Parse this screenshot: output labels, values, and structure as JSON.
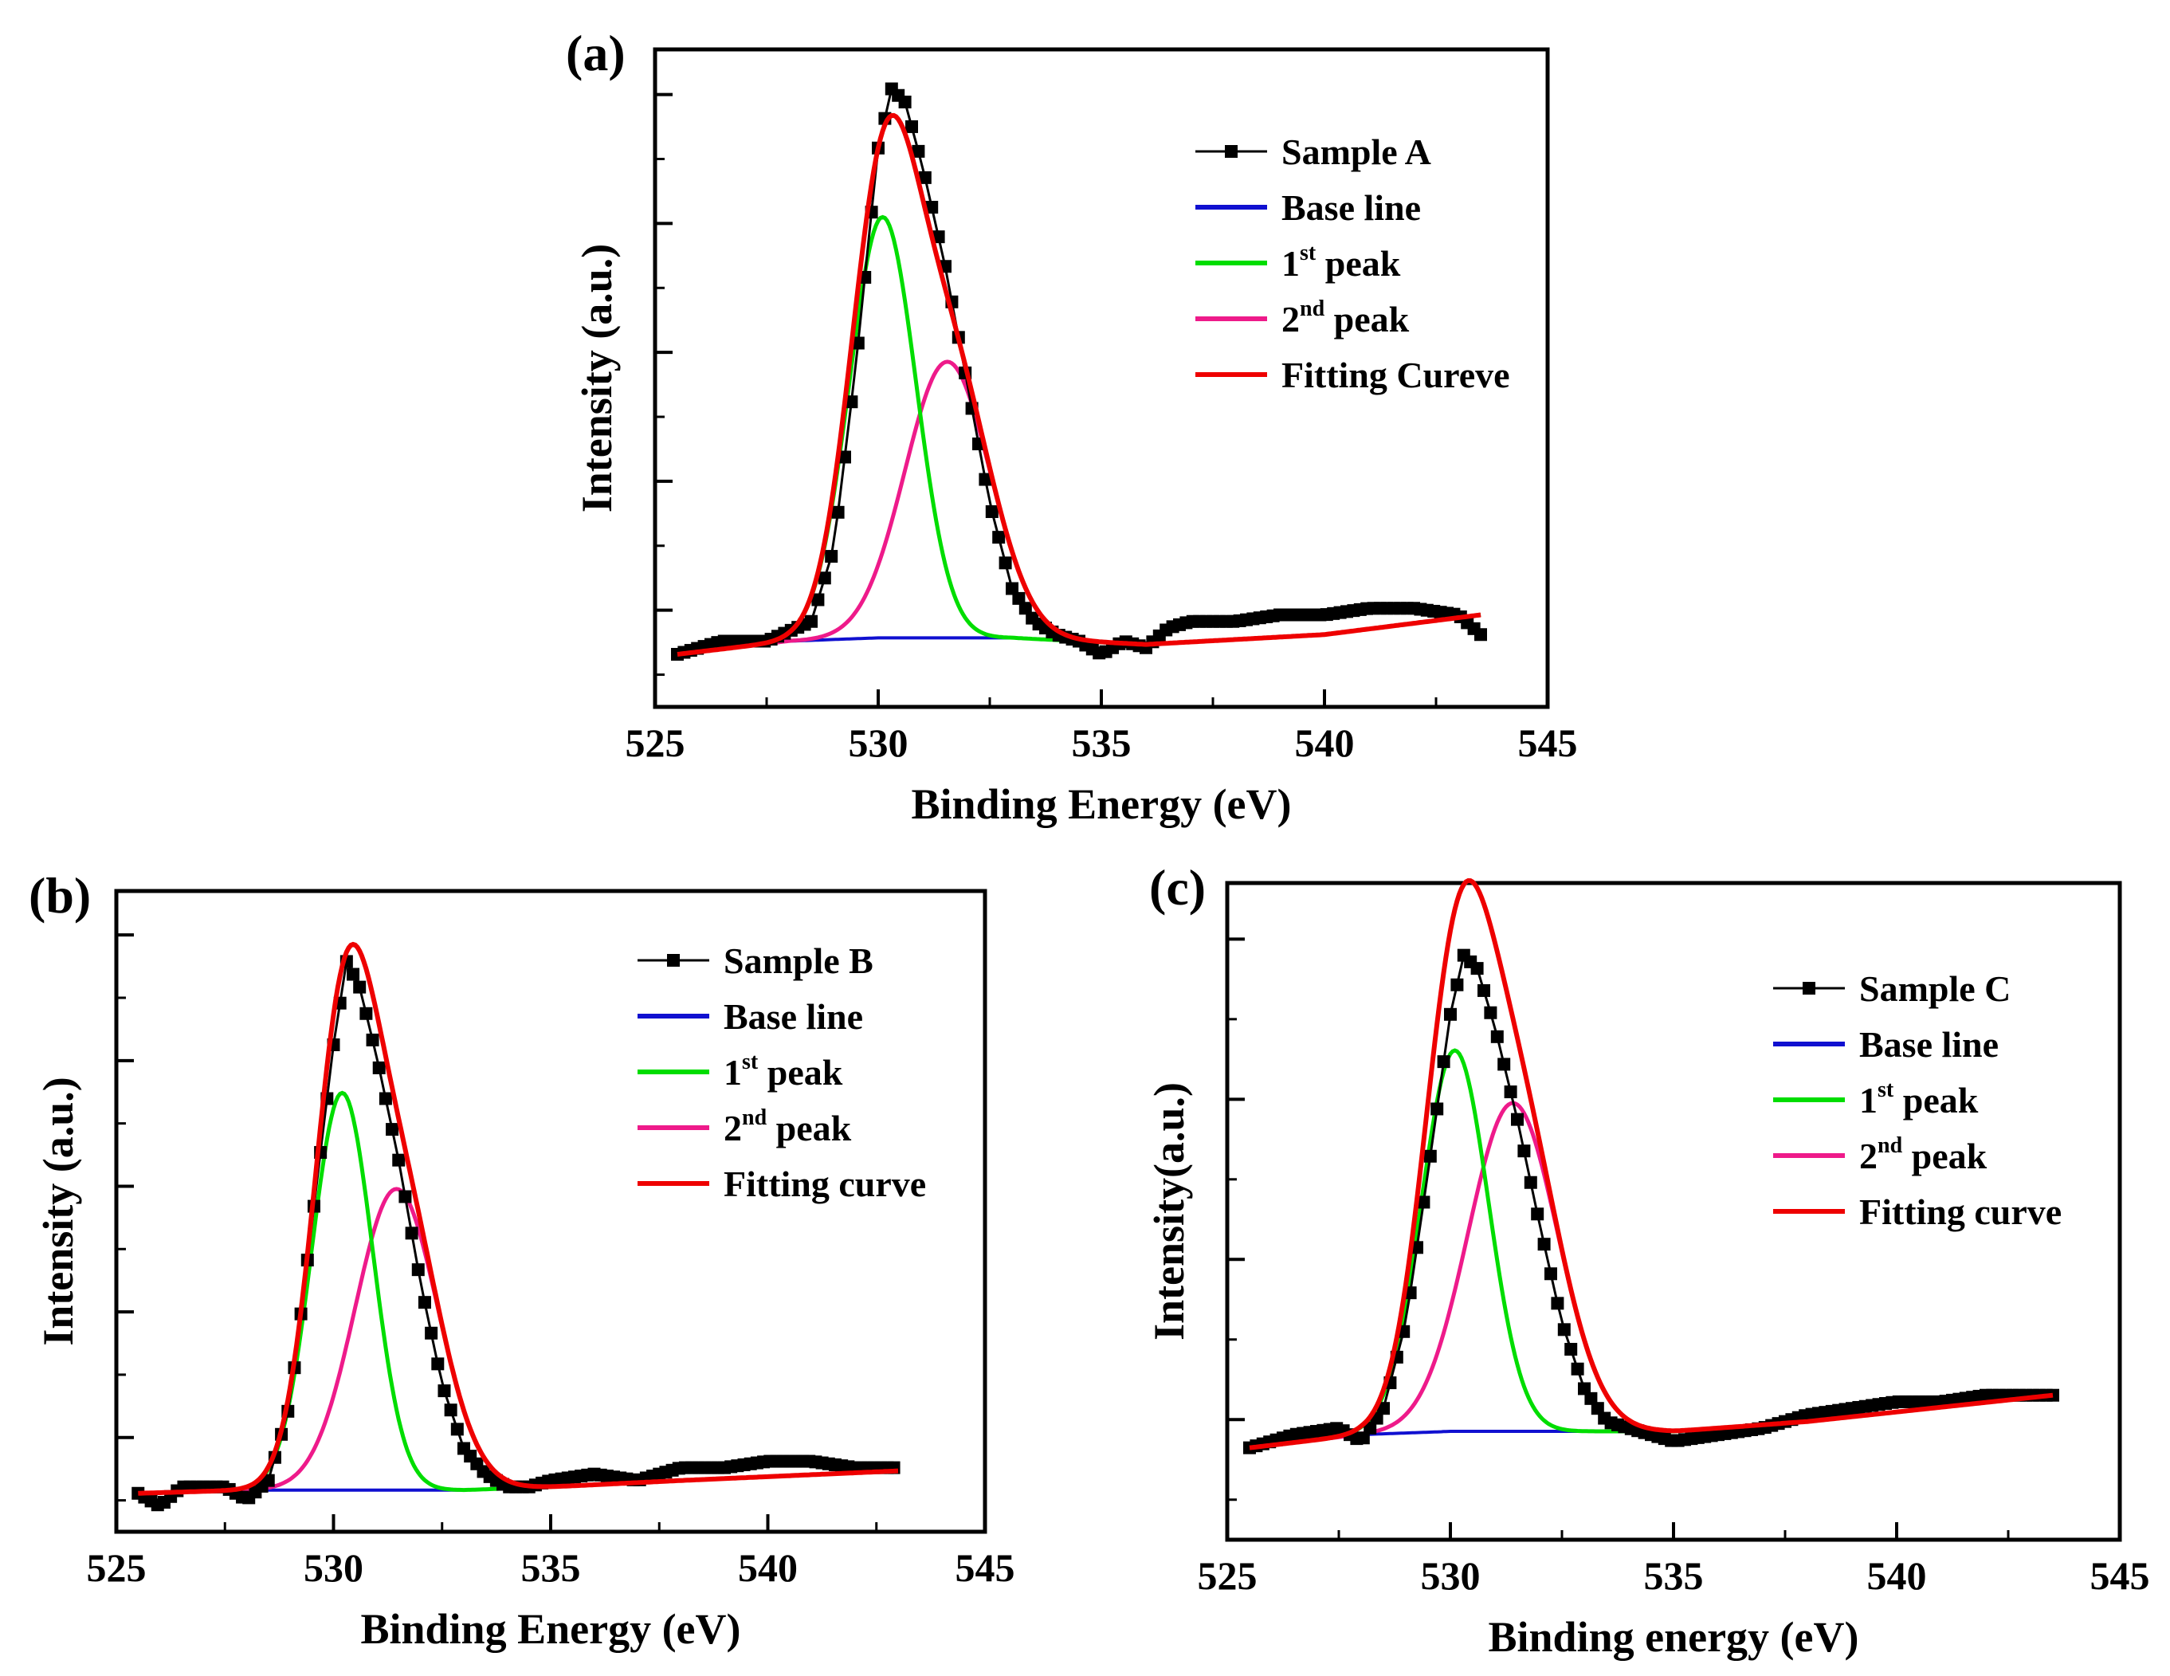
{
  "figure": {
    "panels": [
      "(a)",
      "(b)",
      "(c)"
    ]
  },
  "colors": {
    "sample": "#000000",
    "baseline": "#1010d0",
    "peak1": "#00dd00",
    "peak2": "#ee1a8a",
    "fit": "#ee0000"
  },
  "chart_data": [
    {
      "type": "line",
      "panel_label": "(a)",
      "xlabel": "Binding Energy (eV)",
      "ylabel": "Intensity (a.u.)",
      "xlim": [
        525,
        545
      ],
      "ylim": [
        0,
        100
      ],
      "xticks": [
        "525",
        "530",
        "535",
        "540",
        "545"
      ],
      "yticks_unlabeled": 5,
      "legend_position": "top-right",
      "legend": [
        {
          "key": "sample",
          "label": "Sample A",
          "sup": ""
        },
        {
          "key": "baseline",
          "label": "Base line",
          "sup": ""
        },
        {
          "key": "peak1",
          "label": "1",
          "sup": "st",
          "suffix": " peak"
        },
        {
          "key": "peak2",
          "label": "2",
          "sup": "nd",
          "suffix": " peak"
        },
        {
          "key": "fit",
          "label": "Fitting Cureve",
          "sup": ""
        }
      ],
      "x_start": 525.5,
      "x_end": 543.5,
      "peak1": {
        "center": 530.1,
        "height": 64,
        "sigma": 0.75
      },
      "peak2": {
        "center": 531.55,
        "height": 42,
        "sigma": 0.95
      },
      "baseline": {
        "x": [
          525.5,
          528,
          530,
          533,
          536,
          540,
          543.5
        ],
        "y": [
          8,
          10,
          10.5,
          10.5,
          9.5,
          11,
          14
        ]
      },
      "samples": {
        "x": [
          525.5,
          526.5,
          527.5,
          528.5,
          529.0,
          529.5,
          529.8,
          530.0,
          530.3,
          530.6,
          531.0,
          531.5,
          532.0,
          532.5,
          533.0,
          533.5,
          534.0,
          534.5,
          535.0,
          535.5,
          536.0,
          536.5,
          537.0,
          538.0,
          539.0,
          540.0,
          541.0,
          542.0,
          543.0,
          543.5
        ],
        "y": [
          8,
          10,
          10,
          13,
          24,
          52,
          72,
          85,
          94,
          92,
          82,
          67,
          49,
          31,
          18,
          13,
          11,
          10,
          8,
          10,
          9,
          12,
          13,
          13,
          14,
          14,
          15,
          15,
          14,
          11
        ]
      }
    },
    {
      "type": "line",
      "panel_label": "(b)",
      "xlabel": "Binding Energy (eV)",
      "ylabel": "Intensity (a.u.)",
      "xlim": [
        525,
        545
      ],
      "ylim": [
        0,
        100
      ],
      "xticks": [
        "525",
        "530",
        "535",
        "540",
        "545"
      ],
      "yticks_unlabeled": 5,
      "legend_position": "top-right",
      "legend": [
        {
          "key": "sample",
          "label": "Sample B",
          "sup": ""
        },
        {
          "key": "baseline",
          "label": "Base line",
          "sup": ""
        },
        {
          "key": "peak1",
          "label": "1",
          "sup": "st",
          "suffix": " peak"
        },
        {
          "key": "peak2",
          "label": "2",
          "sup": "nd",
          "suffix": " peak"
        },
        {
          "key": "fit",
          "label": "Fitting curve",
          "sup": ""
        }
      ],
      "x_start": 525.5,
      "x_end": 543,
      "peak1": {
        "center": 530.2,
        "height": 62,
        "sigma": 0.7
      },
      "peak2": {
        "center": 531.45,
        "height": 47,
        "sigma": 0.95
      },
      "baseline": {
        "x": [
          525.5,
          528,
          530,
          533,
          535,
          538,
          543
        ],
        "y": [
          6,
          6.5,
          6.5,
          6.5,
          7,
          8,
          9.5
        ]
      },
      "samples": {
        "x": [
          525.5,
          526.0,
          526.5,
          527.5,
          528.0,
          528.5,
          529.0,
          529.5,
          530.0,
          530.3,
          530.6,
          531.0,
          531.5,
          532.0,
          532.5,
          533.0,
          533.5,
          534.0,
          534.5,
          535.0,
          536.0,
          537.0,
          538.0,
          539.0,
          540.0,
          541.0,
          542.0,
          543.0
        ],
        "y": [
          6,
          4,
          7,
          7,
          5,
          8,
          20,
          48,
          76,
          89,
          85,
          74,
          58,
          39,
          23,
          13,
          9,
          7,
          7,
          8,
          9,
          8,
          10,
          10,
          11,
          11,
          10,
          10
        ]
      }
    },
    {
      "type": "line",
      "panel_label": "(c)",
      "xlabel": "Binding energy (eV)",
      "ylabel": "Intensity(a.u.)",
      "xlim": [
        525,
        545
      ],
      "ylim": [
        0,
        100
      ],
      "xticks": [
        "525",
        "530",
        "535",
        "540",
        "545"
      ],
      "yticks_unlabeled": 4,
      "legend_position": "top-right",
      "legend": [
        {
          "key": "sample",
          "label": "Sample C",
          "sup": ""
        },
        {
          "key": "baseline",
          "label": "Base line",
          "sup": ""
        },
        {
          "key": "peak1",
          "label": "1",
          "sup": "st",
          "suffix": " peak"
        },
        {
          "key": "peak2",
          "label": "2",
          "sup": "nd",
          "suffix": " peak"
        },
        {
          "key": "fit",
          "label": "Fitting curve",
          "sup": ""
        }
      ],
      "x_start": 525.5,
      "x_end": 543.5,
      "peak1": {
        "center": 530.1,
        "height": 58,
        "sigma": 0.75
      },
      "peak2": {
        "center": 531.4,
        "height": 50,
        "sigma": 1.0
      },
      "baseline": {
        "x": [
          525.5,
          528,
          530,
          533,
          535,
          538,
          543.5
        ],
        "y": [
          14,
          16,
          16.5,
          16.5,
          16.5,
          18,
          22
        ]
      },
      "samples": {
        "x": [
          525.5,
          526.5,
          527.5,
          528.0,
          528.5,
          529.0,
          529.5,
          530.0,
          530.3,
          530.6,
          531.0,
          531.5,
          532.0,
          532.5,
          533.0,
          533.5,
          534.0,
          535.0,
          536.0,
          537.0,
          538.0,
          539.0,
          540.0,
          541.0,
          542.0,
          543.0,
          543.5
        ],
        "y": [
          14,
          16,
          17,
          15,
          20,
          33,
          56,
          80,
          89,
          87,
          78,
          64,
          48,
          33,
          23,
          18,
          17,
          15,
          16,
          17,
          19,
          20,
          21,
          21,
          22,
          22,
          22
        ]
      }
    }
  ]
}
